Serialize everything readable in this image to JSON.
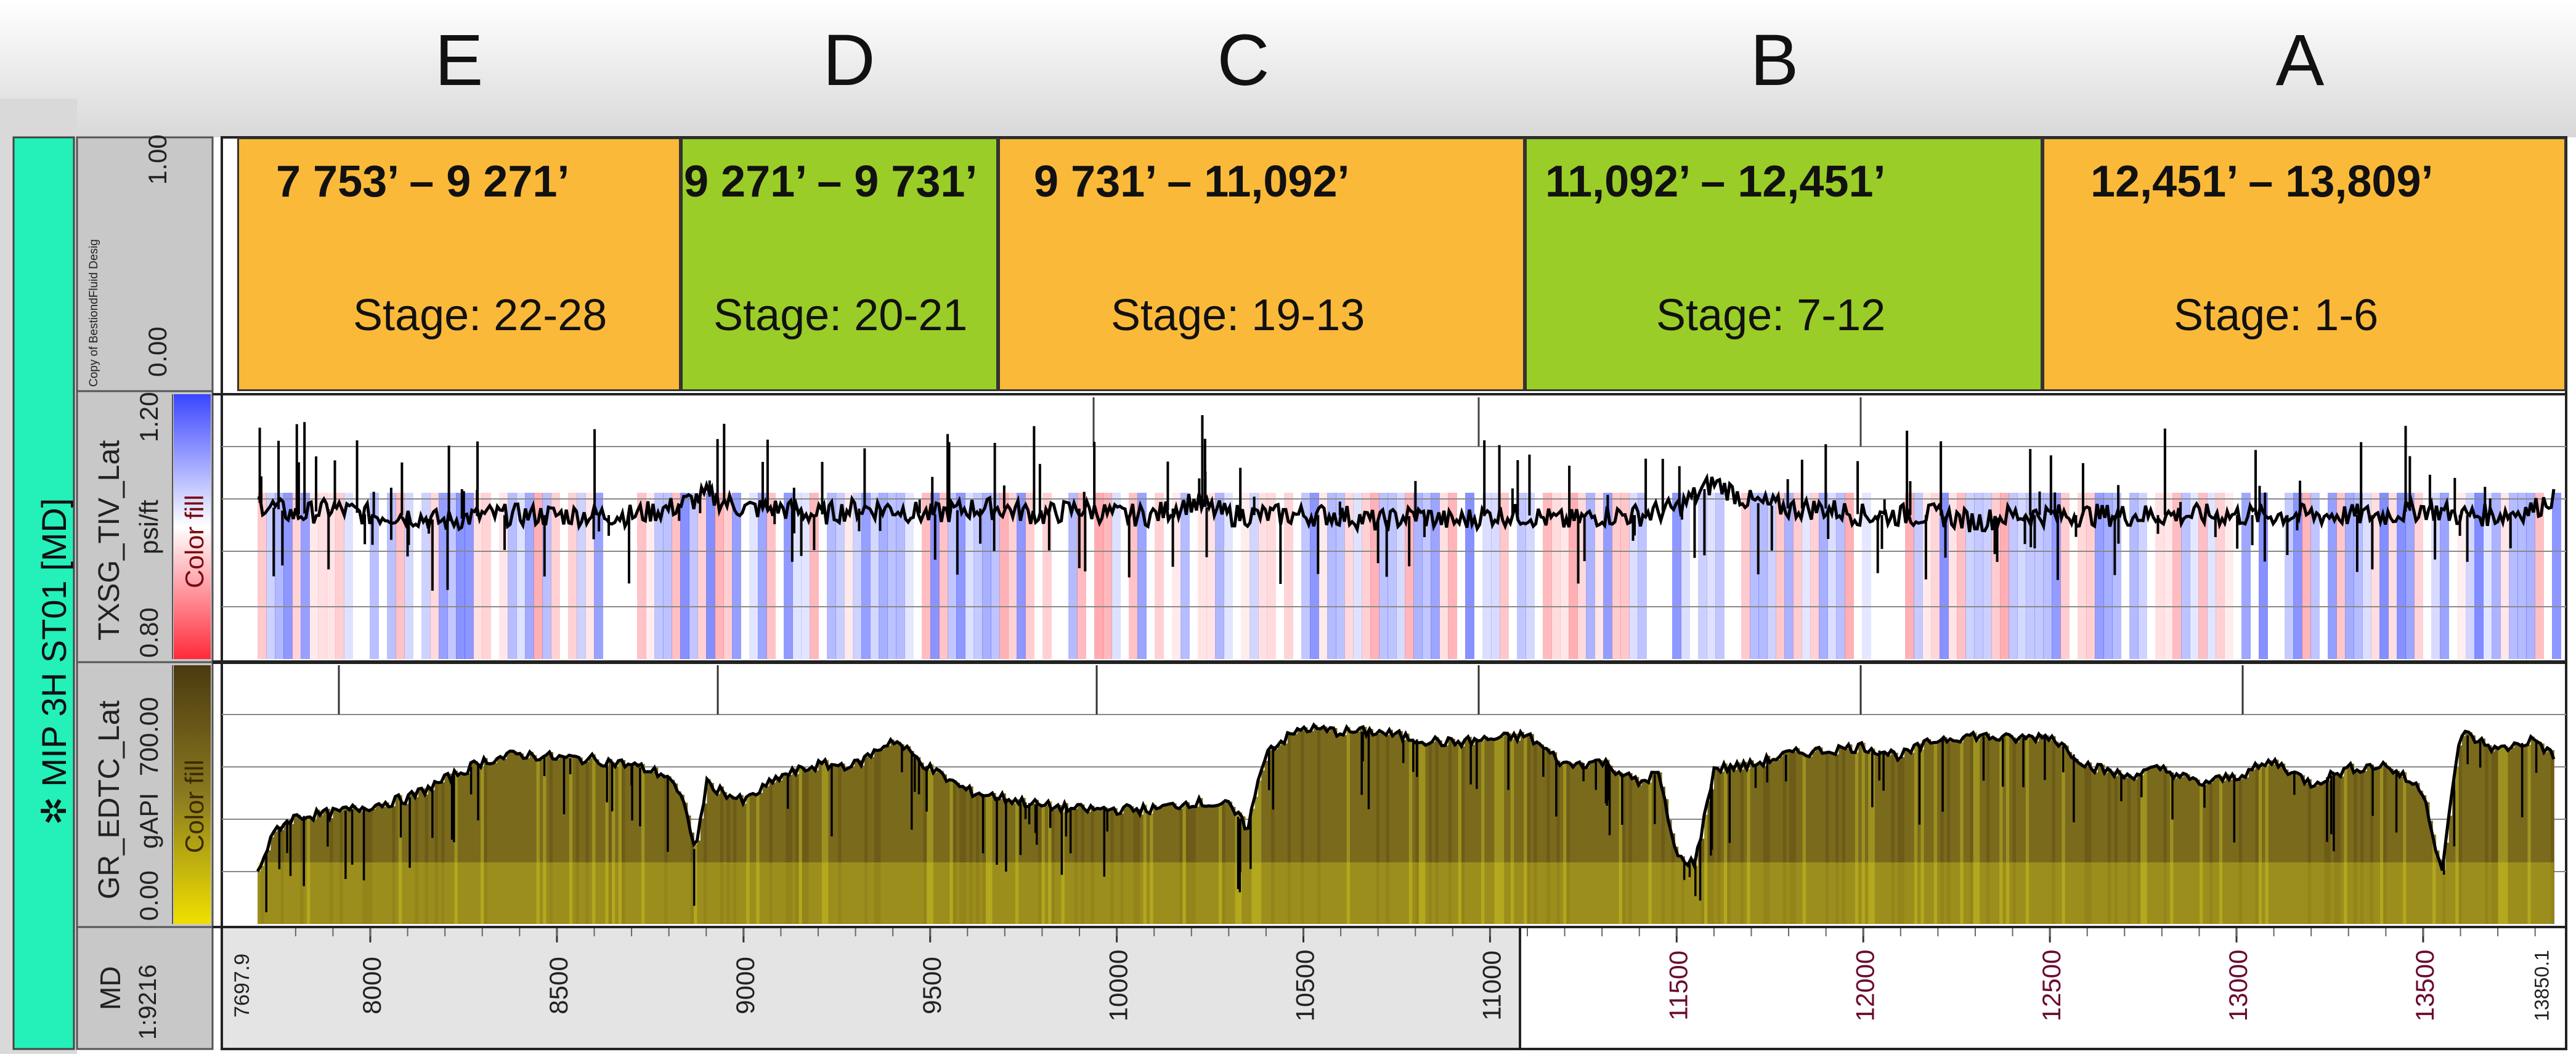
{
  "well_label": "MIP 3H ST01 [MD]",
  "zone_letters": [
    "E",
    "D",
    "C",
    "B",
    "A"
  ],
  "zones": [
    {
      "range": "7 753’ – 9 271’",
      "stage": "Stage: 22-28",
      "color": "#FBB93A"
    },
    {
      "range": "9 271’ – 9 731’",
      "stage": "Stage: 20-21",
      "color": "#9ACD27"
    },
    {
      "range": "9 731’ – 11,092’",
      "stage": "Stage: 19-13",
      "color": "#FBB93A"
    },
    {
      "range": "11,092’ – 12,451’",
      "stage": "Stage: 7-12",
      "color": "#9ACD27"
    },
    {
      "range": "12,451’ – 13,809’",
      "stage": "Stage: 1-6",
      "color": "#FBB93A"
    }
  ],
  "header_track": {
    "name": "Copy of BestiondFluid Desig",
    "scale_top": "1.00",
    "scale_bottom": "0.00"
  },
  "track1": {
    "name": "TXSG_TIV_Lat",
    "unit": "psi/ft",
    "fill_label": "Color fill",
    "scale_top": "1.20",
    "scale_bottom": "0.80"
  },
  "track2": {
    "name": "GR_EDTC_Lat",
    "unit": "gAPI",
    "fill_label": "Color fill",
    "scale_top": "700.00",
    "scale_bottom": "0.00"
  },
  "depth_track": {
    "name": "MD",
    "scale": "1:9216"
  },
  "colors": {
    "orange": "#FBB93A",
    "green": "#9ACD27",
    "well_bar": "#24F0B9",
    "gr_fill": "#7A6A1C",
    "gr_yellow": "#C8B818",
    "tiv_blue": "#4C5CFF",
    "tiv_red": "#FF5A64"
  },
  "chart_data": [
    {
      "type": "line",
      "name": "TXSG_TIV_Lat",
      "xlabel": "MD",
      "ylabel": "psi/ft",
      "xlim": [
        7697.9,
        13850.1
      ],
      "ylim": [
        0.8,
        1.2
      ],
      "x": [
        7697.9,
        7800,
        7900,
        8000,
        8100,
        8200,
        8300,
        8400,
        8500,
        8600,
        8700,
        8800,
        8900,
        9000,
        9100,
        9200,
        9300,
        9400,
        9500,
        9600,
        9700,
        9800,
        9900,
        10000,
        10100,
        10200,
        10300,
        10400,
        10500,
        10600,
        10700,
        10800,
        10900,
        11000,
        11100,
        11200,
        11300,
        11400,
        11500,
        11600,
        11700,
        11800,
        11900,
        12000,
        12100,
        12200,
        12300,
        12400,
        12500,
        12600,
        12700,
        12800,
        12900,
        13000,
        13100,
        13200,
        13300,
        13400,
        13500,
        13600,
        13700,
        13800,
        13850.1
      ],
      "y": [
        1.04,
        1.02,
        1.03,
        1.02,
        1.02,
        1.01,
        1.02,
        1.02,
        1.02,
        1.02,
        1.02,
        1.03,
        1.05,
        1.03,
        1.03,
        1.02,
        1.03,
        1.03,
        1.02,
        1.03,
        1.03,
        1.02,
        1.03,
        1.02,
        1.02,
        1.04,
        1.02,
        1.02,
        1.02,
        1.02,
        1.01,
        1.02,
        1.01,
        1.02,
        1.02,
        1.01,
        1.02,
        1.02,
        1.03,
        1.07,
        1.04,
        1.03,
        1.03,
        1.02,
        1.02,
        1.02,
        1.01,
        1.02,
        1.02,
        1.02,
        1.02,
        1.02,
        1.02,
        1.02,
        1.02,
        1.02,
        1.02,
        1.02,
        1.03,
        1.02,
        1.02,
        1.03,
        1.05
      ],
      "ytick_labels": [
        "1.20",
        "0.80"
      ]
    },
    {
      "type": "area",
      "name": "GR_EDTC_Lat",
      "xlabel": "MD",
      "ylabel": "gAPI",
      "xlim": [
        7697.9,
        13850.1
      ],
      "ylim": [
        0,
        700
      ],
      "x": [
        7697.9,
        7750,
        7800,
        7900,
        8000,
        8100,
        8200,
        8300,
        8400,
        8500,
        8600,
        8700,
        8800,
        8850,
        8870,
        8900,
        9000,
        9100,
        9200,
        9300,
        9400,
        9500,
        9600,
        9700,
        9800,
        9900,
        10000,
        10100,
        10200,
        10300,
        10350,
        10400,
        10500,
        10600,
        10700,
        10800,
        10900,
        11000,
        11100,
        11200,
        11300,
        11400,
        11450,
        11500,
        11550,
        11600,
        11700,
        11800,
        11900,
        12000,
        12100,
        12200,
        12300,
        12400,
        12500,
        12600,
        12700,
        12800,
        12900,
        13000,
        13100,
        13200,
        13300,
        13400,
        13500,
        13550,
        13600,
        13700,
        13800,
        13850.1
      ],
      "y": [
        145,
        260,
        290,
        300,
        320,
        340,
        390,
        440,
        460,
        450,
        445,
        430,
        400,
        300,
        190,
        380,
        330,
        400,
        430,
        430,
        500,
        420,
        360,
        340,
        320,
        310,
        310,
        310,
        330,
        320,
        260,
        470,
        530,
        520,
        520,
        500,
        490,
        500,
        510,
        430,
        440,
        380,
        410,
        180,
        165,
        420,
        430,
        460,
        470,
        480,
        455,
        500,
        510,
        500,
        510,
        430,
        400,
        420,
        380,
        400,
        440,
        380,
        420,
        430,
        360,
        140,
        520,
        470,
        500,
        450
      ],
      "ytick_labels": [
        "700.00",
        "0.00"
      ]
    }
  ],
  "depth_axis": {
    "start_label": "7697.9",
    "end_label": "13850.1",
    "ticks": [
      "8000",
      "8500",
      "9000",
      "9500",
      "10000",
      "10500",
      "11000",
      "11500",
      "12000",
      "12500",
      "13000",
      "13500"
    ]
  }
}
